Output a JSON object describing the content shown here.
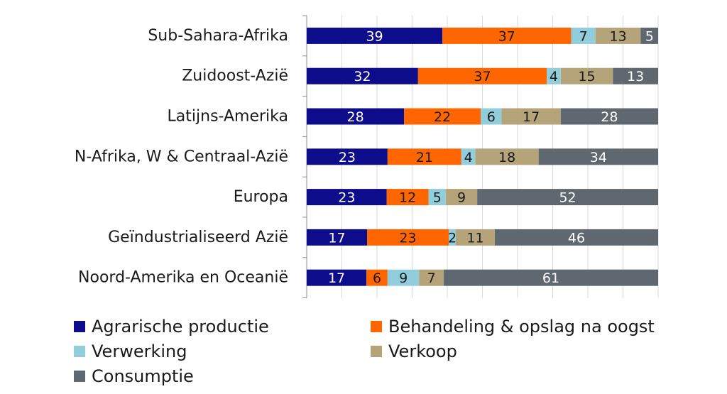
{
  "chart_data": {
    "type": "bar",
    "orientation": "horizontal",
    "stacked": true,
    "normalized_percent": true,
    "categories": [
      "Sub-Sahara-Afrika",
      "Zuidoost-Azië",
      "Latijns-Amerika",
      "N-Afrika, W & Centraal-Azië",
      "Europa",
      "Geïndustrialiseerd Azië",
      "Noord-Amerika en Oceanië"
    ],
    "series": [
      {
        "name": "Agrarische productie",
        "color": "#0d0d8c",
        "label_color": "#ffffff",
        "values": [
          39,
          32,
          28,
          23,
          23,
          17,
          17
        ]
      },
      {
        "name": "Behandeling & opslag na oogst",
        "color": "#ff6600",
        "label_color": "#1a1a1a",
        "values": [
          37,
          37,
          22,
          21,
          12,
          23,
          6
        ]
      },
      {
        "name": "Verwerking",
        "color": "#92cddc",
        "label_color": "#1a1a1a",
        "values": [
          7,
          4,
          6,
          4,
          5,
          2,
          9
        ]
      },
      {
        "name": "Verkoop",
        "color": "#b5a37a",
        "label_color": "#1a1a1a",
        "values": [
          13,
          15,
          17,
          18,
          9,
          11,
          7
        ]
      },
      {
        "name": "Consumptie",
        "color": "#5f6770",
        "label_color": "#ffffff",
        "values": [
          5,
          13,
          28,
          34,
          52,
          46,
          61
        ]
      }
    ],
    "grid": true,
    "legend_position": "bottom"
  }
}
